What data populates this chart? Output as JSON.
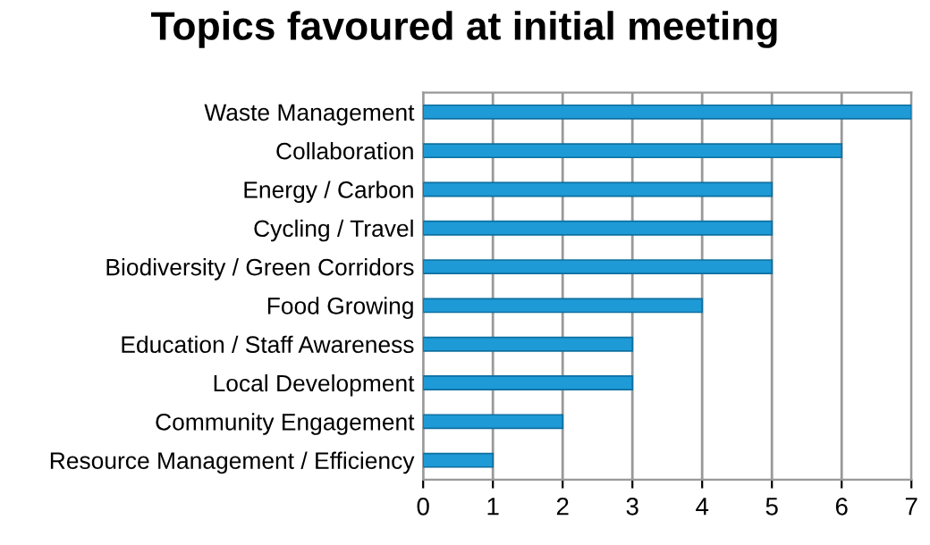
{
  "chart_data": {
    "type": "bar",
    "orientation": "horizontal",
    "title": "Topics favoured at initial meeting",
    "categories": [
      "Waste Management",
      "Collaboration",
      "Energy / Carbon",
      "Cycling / Travel",
      "Biodiversity / Green Corridors",
      "Food Growing",
      "Education / Staff Awareness",
      "Local Development",
      "Community Engagement",
      "Resource Management / Efficiency"
    ],
    "values": [
      7,
      6,
      5,
      5,
      5,
      4,
      3,
      3,
      2,
      1
    ],
    "color": "#1e9ad6",
    "xlim": [
      0,
      7
    ],
    "xticks": [
      0,
      1,
      2,
      3,
      4,
      5,
      6,
      7
    ],
    "grid": "x"
  }
}
